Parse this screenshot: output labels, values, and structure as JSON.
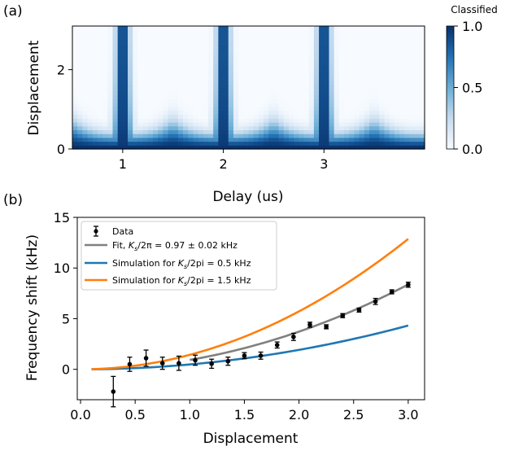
{
  "panels": {
    "a": "(a)",
    "b": "(b)"
  },
  "chart_data": [
    {
      "type": "heatmap",
      "panel": "(a)",
      "xlabel": "Delay (us)",
      "ylabel": "Displacement",
      "xlim": [
        0.5,
        4.0
      ],
      "ylim": [
        0,
        3.1
      ],
      "xticks": [
        1,
        2,
        3
      ],
      "yticks": [
        0,
        2
      ],
      "colorbar": {
        "label": "Classified",
        "ticks": [
          0.0,
          0.5,
          1.0
        ],
        "tick_labels": [
          "0.0",
          "0.5",
          "1.0"
        ],
        "range": [
          0,
          1
        ],
        "colors": [
          "#f7fbff",
          "#c6dbef",
          "#6baed6",
          "#2171b5",
          "#08306b"
        ]
      },
      "description_values": {
        "revival_delays_us": [
          1.0,
          2.0,
          3.0
        ],
        "low_displacement_band_top": 0.5
      }
    },
    {
      "type": "line",
      "panel": "(b)",
      "xlabel": "Displacement",
      "ylabel": "Frequency shift (kHz)",
      "xlim": [
        -0.03,
        3.15
      ],
      "ylim": [
        -3,
        15
      ],
      "xticks": [
        0.0,
        0.5,
        1.0,
        1.5,
        2.0,
        2.5,
        3.0
      ],
      "xtick_labels": [
        "0.0",
        "0.5",
        "1.0",
        "1.5",
        "2.0",
        "2.5",
        "3.0"
      ],
      "yticks": [
        0,
        5,
        10,
        15
      ],
      "ytick_labels": [
        "0",
        "5",
        "10",
        "15"
      ],
      "legend_position": "top-left",
      "grid": false,
      "data": {
        "name": "Data",
        "color": "#000000",
        "x": [
          0.3,
          0.45,
          0.6,
          0.75,
          0.9,
          1.05,
          1.2,
          1.35,
          1.5,
          1.65,
          1.8,
          1.95,
          2.1,
          2.25,
          2.4,
          2.55,
          2.7,
          2.85,
          3.0
        ],
        "y": [
          -2.2,
          0.5,
          1.1,
          0.6,
          0.6,
          0.9,
          0.55,
          0.8,
          1.35,
          1.35,
          2.4,
          3.2,
          4.4,
          4.2,
          5.3,
          5.85,
          6.7,
          7.65,
          8.35
        ],
        "yerr": [
          1.5,
          0.7,
          0.8,
          0.6,
          0.7,
          0.5,
          0.45,
          0.4,
          0.3,
          0.35,
          0.3,
          0.35,
          0.25,
          0.2,
          0.2,
          0.2,
          0.3,
          0.2,
          0.25
        ]
      },
      "series": [
        {
          "name": "Fit, K_s/2π =  0.97 ± 0.02 kHz",
          "color": "#808080",
          "coef": 0.93,
          "x_range": [
            1.0,
            3.0
          ]
        },
        {
          "name": "Simulation for K_s/2pi = 0.5 kHz",
          "color": "#1f77b4",
          "coef": 0.48,
          "x_range": [
            0.1,
            3.0
          ]
        },
        {
          "name": "Simulation for K_s/2pi = 1.5 kHz",
          "color": "#ff7f0e",
          "coef": 1.43,
          "x_range": [
            0.1,
            3.0
          ]
        }
      ],
      "legend": {
        "data": "Data",
        "fit_prefix": "Fit, ",
        "fit_suffix": "/2π =  0.97 ± 0.02 kHz",
        "sim_prefix": "Simulation for ",
        "sim1_suffix": "/2pi = 0.5 kHz",
        "sim2_suffix": "/2pi = 1.5 kHz",
        "k_symbol": "K",
        "k_sub": "s"
      }
    }
  ]
}
